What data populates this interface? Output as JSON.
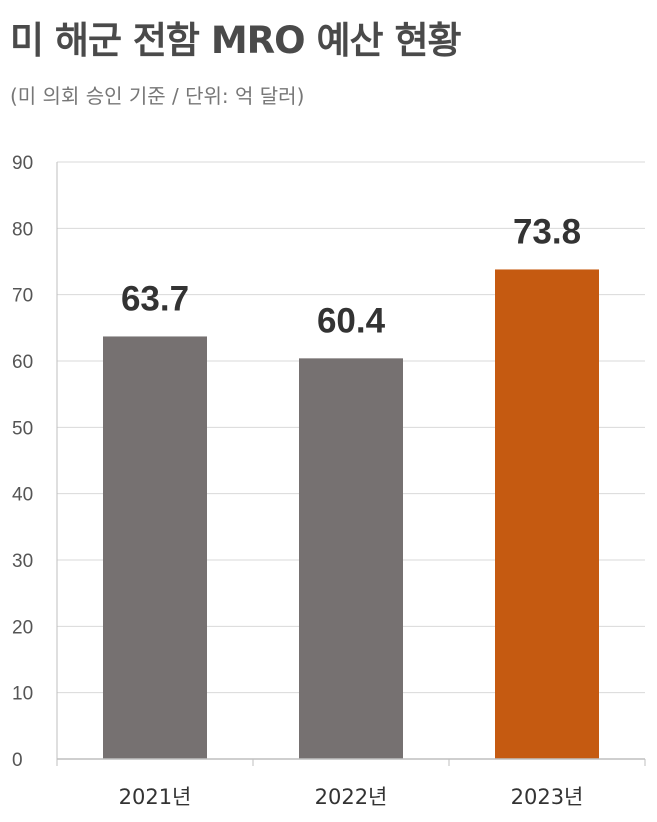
{
  "chart_data": {
    "type": "bar",
    "title": "미 해군 전함 MRO 예산 현황",
    "subtitle": "(미 의회 승인 기준 / 단위: 억 달러)",
    "categories": [
      "2021년",
      "2022년",
      "2023년"
    ],
    "values": [
      63.7,
      60.4,
      73.8
    ],
    "value_labels": [
      "63.7",
      "60.4",
      "73.8"
    ],
    "ylim": [
      0,
      90
    ],
    "yticks": [
      0,
      10,
      20,
      30,
      40,
      50,
      60,
      70,
      80,
      90
    ],
    "grid": true,
    "colors": [
      "#767171",
      "#767171",
      "#c55a11"
    ],
    "grid_color": "#d9d9d9",
    "axis_color": "#bfbfbf"
  }
}
